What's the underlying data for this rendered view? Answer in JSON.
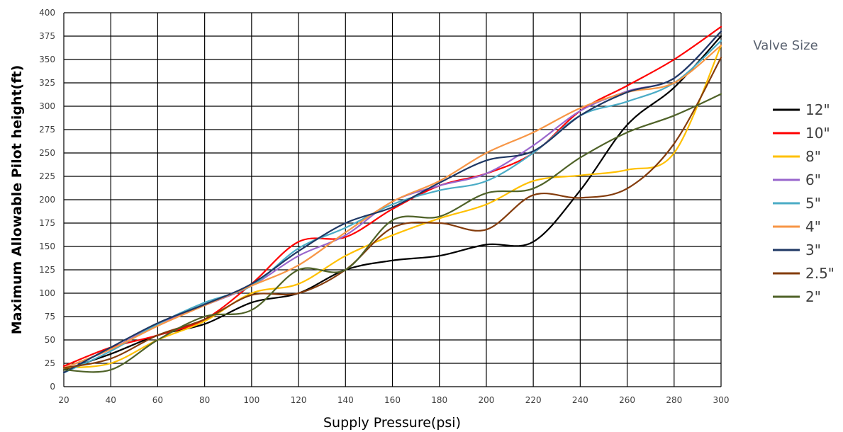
{
  "chart_data": {
    "type": "line",
    "title": "",
    "xlabel": "Supply Pressure(psi)",
    "ylabel": "Maximum Allowable Pilot height(ft)",
    "xlim": [
      20,
      300
    ],
    "ylim": [
      0,
      400
    ],
    "xticks": [
      "20",
      "40",
      "60",
      "80",
      "100",
      "120",
      "140",
      "160",
      "180",
      "200",
      "220",
      "240",
      "260",
      "280",
      "300"
    ],
    "yticks": [
      "0",
      "25",
      "50",
      "75",
      "100",
      "125",
      "150",
      "175",
      "200",
      "225",
      "250",
      "275",
      "300",
      "325",
      "350",
      "375",
      "400"
    ],
    "grid": true,
    "smooth": true,
    "legend_title": "Valve Size",
    "legend_position": "right",
    "x": [
      20,
      40,
      60,
      80,
      100,
      120,
      140,
      160,
      180,
      200,
      220,
      240,
      260,
      280,
      300
    ],
    "series": [
      {
        "name": "12\"",
        "color": "#000000",
        "values": [
          18,
          35,
          55,
          67,
          90,
          100,
          125,
          135,
          140,
          152,
          155,
          210,
          280,
          320,
          375
        ]
      },
      {
        "name": "10\"",
        "color": "#ff0000",
        "values": [
          22,
          42,
          55,
          72,
          110,
          155,
          160,
          190,
          215,
          228,
          250,
          295,
          322,
          350,
          385
        ]
      },
      {
        "name": "8\"",
        "color": "#ffc000",
        "values": [
          20,
          25,
          50,
          70,
          100,
          110,
          140,
          162,
          180,
          195,
          220,
          226,
          232,
          250,
          365
        ]
      },
      {
        "name": "6\"",
        "color": "#9966cc",
        "values": [
          20,
          40,
          67,
          87,
          108,
          140,
          162,
          198,
          215,
          228,
          258,
          295,
          316,
          330,
          380
        ]
      },
      {
        "name": "5\"",
        "color": "#4bacc6",
        "values": [
          15,
          38,
          67,
          90,
          108,
          148,
          170,
          195,
          210,
          220,
          250,
          290,
          305,
          325,
          370
        ]
      },
      {
        "name": "4\"",
        "color": "#f79646",
        "values": [
          20,
          40,
          65,
          87,
          108,
          130,
          165,
          198,
          220,
          250,
          272,
          298,
          315,
          325,
          365
        ]
      },
      {
        "name": "3\"",
        "color": "#1f3864",
        "values": [
          15,
          42,
          68,
          88,
          110,
          145,
          175,
          192,
          218,
          242,
          252,
          290,
          315,
          330,
          380
        ]
      },
      {
        "name": "2.5\"",
        "color": "#843c0c",
        "values": [
          20,
          30,
          55,
          72,
          98,
          100,
          125,
          170,
          175,
          168,
          205,
          202,
          212,
          260,
          352
        ]
      },
      {
        "name": "2\"",
        "color": "#4f6228",
        "values": [
          18,
          18,
          50,
          75,
          82,
          125,
          125,
          178,
          182,
          207,
          212,
          245,
          272,
          290,
          313
        ]
      }
    ]
  }
}
